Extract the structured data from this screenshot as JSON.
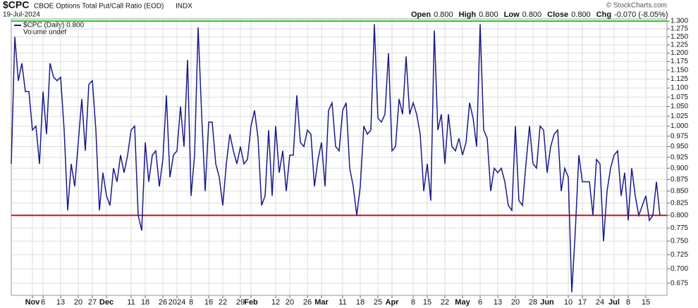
{
  "chart_data": {
    "type": "line",
    "symbol": "$CPC",
    "title": "CBOE Options Total Put/Call Ratio (EOD)",
    "exchange": "INDX",
    "date": "19-Jul-2024",
    "credit": "© StockCharts.com",
    "stats": [
      {
        "label": "Open",
        "value": "0.800"
      },
      {
        "label": "High",
        "value": "0.800"
      },
      {
        "label": "Low",
        "value": "0.800"
      },
      {
        "label": "Close",
        "value": "0.800"
      },
      {
        "label": "Chg",
        "value": "-0.070 (-8.05%)"
      }
    ],
    "legend_extra": "Volume undef",
    "log_scale": true,
    "grid": true,
    "categories": [
      null,
      null,
      null,
      null,
      null,
      null,
      "Nov",
      null,
      null,
      "6",
      null,
      null,
      null,
      null,
      "13",
      null,
      null,
      null,
      null,
      "20",
      null,
      null,
      null,
      "27",
      null,
      null,
      null,
      "Dec",
      null,
      null,
      null,
      null,
      null,
      null,
      "11",
      null,
      null,
      null,
      "18",
      null,
      null,
      null,
      null,
      "26",
      null,
      null,
      null,
      "2024",
      null,
      null,
      null,
      "8",
      null,
      null,
      null,
      null,
      "16",
      null,
      null,
      null,
      "22",
      null,
      null,
      null,
      null,
      "29",
      null,
      null,
      "Feb",
      null,
      null,
      null,
      null,
      null,
      null,
      "12",
      null,
      null,
      null,
      "20",
      null,
      null,
      null,
      null,
      "26",
      null,
      null,
      null,
      "Mar",
      null,
      null,
      null,
      null,
      null,
      "11",
      null,
      null,
      null,
      null,
      "18",
      null,
      null,
      null,
      null,
      "25",
      null,
      null,
      null,
      "Apr",
      null,
      null,
      null,
      null,
      null,
      "8",
      null,
      null,
      null,
      "15",
      null,
      null,
      null,
      null,
      "22",
      null,
      null,
      null,
      null,
      "May",
      null,
      null,
      null,
      null,
      "6",
      null,
      null,
      null,
      null,
      "13",
      null,
      null,
      null,
      null,
      "20",
      null,
      null,
      null,
      null,
      "28",
      null,
      null,
      null,
      "Jun",
      null,
      null,
      null,
      null,
      null,
      "10",
      null,
      null,
      null,
      "17",
      null,
      null,
      null,
      null,
      "24",
      null,
      null,
      null,
      "Jul",
      null,
      null,
      null,
      "8",
      null,
      null,
      null,
      null,
      "15",
      null,
      null,
      null,
      null
    ],
    "series": [
      {
        "name": "$CPC (Daily) 0.800",
        "color": "#1a1a8c",
        "values": [
          0.91,
          1.25,
          1.12,
          1.17,
          1.09,
          1.09,
          0.99,
          1.0,
          0.91,
          1.09,
          0.98,
          1.17,
          1.13,
          1.12,
          1.13,
          0.99,
          0.81,
          0.91,
          0.86,
          0.96,
          1.07,
          0.94,
          1.11,
          1.12,
          0.99,
          0.81,
          0.89,
          0.84,
          0.82,
          0.9,
          0.87,
          0.93,
          0.89,
          0.93,
          0.99,
          1.0,
          0.8,
          0.77,
          0.96,
          0.87,
          0.93,
          0.94,
          0.86,
          0.92,
          1.08,
          0.88,
          0.93,
          0.94,
          1.05,
          0.95,
          1.18,
          0.84,
          0.93,
          1.28,
          1.03,
          0.85,
          1.01,
          1.01,
          0.91,
          0.88,
          0.82,
          0.91,
          0.98,
          0.94,
          0.91,
          0.95,
          0.91,
          0.92,
          1.0,
          1.04,
          0.97,
          0.82,
          0.84,
          0.99,
          0.84,
          1.0,
          0.89,
          0.94,
          0.85,
          0.93,
          0.93,
          1.08,
          0.96,
          0.95,
          0.99,
          0.98,
          0.86,
          0.92,
          0.96,
          0.86,
          1.04,
          1.06,
          0.95,
          0.94,
          1.04,
          1.06,
          0.9,
          0.86,
          0.8,
          0.86,
          1.0,
          0.98,
          0.99,
          1.29,
          1.02,
          1.01,
          1.03,
          1.2,
          0.94,
          0.95,
          1.07,
          1.03,
          1.19,
          1.03,
          1.06,
          1.03,
          0.98,
          0.85,
          0.91,
          0.83,
          1.27,
          0.99,
          1.03,
          0.91,
          1.03,
          0.95,
          0.94,
          0.97,
          0.93,
          0.96,
          1.06,
          1.02,
          0.95,
          1.29,
          0.99,
          0.97,
          0.85,
          0.9,
          0.89,
          0.9,
          0.87,
          0.82,
          0.81,
          1.0,
          0.83,
          0.82,
          0.91,
          1.0,
          0.91,
          0.9,
          1.0,
          0.99,
          0.89,
          0.95,
          0.98,
          0.99,
          0.85,
          0.9,
          0.88,
          0.66,
          0.77,
          0.93,
          0.87,
          0.87,
          0.87,
          0.8,
          0.92,
          0.91,
          0.75,
          0.85,
          0.9,
          0.93,
          0.94,
          0.84,
          0.89,
          0.79,
          0.9,
          0.84,
          0.8,
          0.82,
          0.84,
          0.79,
          0.8,
          0.87,
          0.8
        ]
      }
    ],
    "ylim": [
      0.655,
      1.307
    ],
    "yticks": [
      {
        "value": 0.675,
        "label": "0.675"
      },
      {
        "value": 0.7,
        "label": "0.700"
      },
      {
        "value": 0.725,
        "label": "0.725"
      },
      {
        "value": 0.75,
        "label": "0.750"
      },
      {
        "value": 0.775,
        "label": "0.775"
      },
      {
        "value": 0.8,
        "label": "0.800"
      },
      {
        "value": 0.825,
        "label": "0.825"
      },
      {
        "value": 0.85,
        "label": "0.850"
      },
      {
        "value": 0.875,
        "label": "0.875"
      },
      {
        "value": 0.9,
        "label": "0.900"
      },
      {
        "value": 0.925,
        "label": "0.925"
      },
      {
        "value": 0.95,
        "label": "0.950"
      },
      {
        "value": 0.975,
        "label": "0.975"
      },
      {
        "value": 1.0,
        "label": "1.000"
      },
      {
        "value": 1.025,
        "label": "1.025"
      },
      {
        "value": 1.05,
        "label": "1.050"
      },
      {
        "value": 1.075,
        "label": "1.075"
      },
      {
        "value": 1.1,
        "label": "1.100"
      },
      {
        "value": 1.125,
        "label": "1.125"
      },
      {
        "value": 1.15,
        "label": "1.150"
      },
      {
        "value": 1.175,
        "label": "1.175"
      },
      {
        "value": 1.2,
        "label": "1.200"
      },
      {
        "value": 1.225,
        "label": "1.225"
      },
      {
        "value": 1.25,
        "label": "1.250"
      },
      {
        "value": 1.275,
        "label": "1.275"
      },
      {
        "value": 1.3,
        "label": "1.300"
      }
    ],
    "hlines": [
      {
        "value": 1.3,
        "color": "#22cc22"
      },
      {
        "value": 0.8,
        "color": "#cc1111"
      }
    ]
  }
}
